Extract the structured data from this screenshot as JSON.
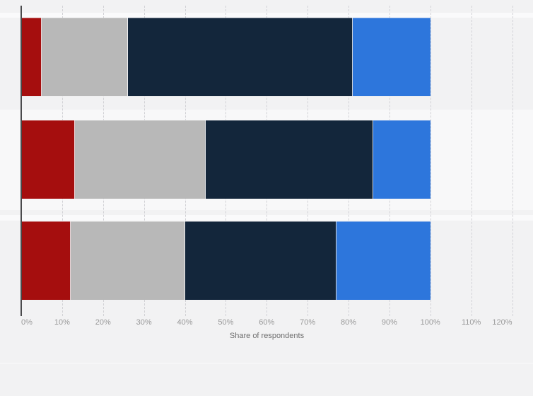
{
  "chart_data": {
    "type": "bar",
    "orientation": "horizontal",
    "stacked": true,
    "title": "",
    "legend": "none",
    "grid": "vertical-dashed",
    "categories": [
      "",
      "",
      ""
    ],
    "series": [
      {
        "name": "dark-red",
        "color": "#a50e0e",
        "values": [
          5,
          13,
          12
        ]
      },
      {
        "name": "gray",
        "color": "#b8b8b8",
        "values": [
          21,
          32,
          28
        ]
      },
      {
        "name": "dark-navy",
        "color": "#13263b",
        "values": [
          55,
          41,
          37
        ]
      },
      {
        "name": "blue",
        "color": "#2d76dc",
        "values": [
          19,
          14,
          23
        ]
      }
    ],
    "xlabel": "Share of respondents",
    "x_ticks": [
      "0%",
      "10%",
      "20%",
      "30%",
      "40%",
      "50%",
      "60%",
      "70%",
      "80%",
      "90%",
      "100%",
      "110%",
      "120%"
    ],
    "xlim": [
      0,
      120
    ],
    "bar_totals": [
      100,
      100,
      100
    ]
  },
  "style": {
    "background": "#f2f2f3",
    "row_highlight": "#f8f8f9",
    "gridline_color": "#d2d2d6",
    "axis_line_color": "#4a4a4c",
    "tick_label_color": "#9a9a9a",
    "axis_title_color": "#6e6e6e"
  }
}
